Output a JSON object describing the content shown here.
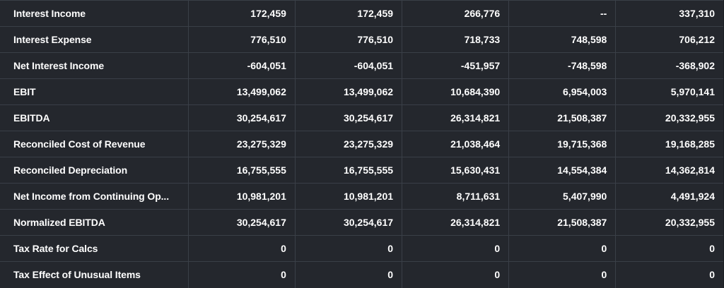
{
  "rows": [
    {
      "label": "Interest Income",
      "values": [
        "172,459",
        "172,459",
        "266,776",
        "--",
        "337,310"
      ]
    },
    {
      "label": "Interest Expense",
      "values": [
        "776,510",
        "776,510",
        "718,733",
        "748,598",
        "706,212"
      ]
    },
    {
      "label": "Net Interest Income",
      "values": [
        "-604,051",
        "-604,051",
        "-451,957",
        "-748,598",
        "-368,902"
      ]
    },
    {
      "label": "EBIT",
      "values": [
        "13,499,062",
        "13,499,062",
        "10,684,390",
        "6,954,003",
        "5,970,141"
      ]
    },
    {
      "label": "EBITDA",
      "values": [
        "30,254,617",
        "30,254,617",
        "26,314,821",
        "21,508,387",
        "20,332,955"
      ]
    },
    {
      "label": "Reconciled Cost of Revenue",
      "values": [
        "23,275,329",
        "23,275,329",
        "21,038,464",
        "19,715,368",
        "19,168,285"
      ]
    },
    {
      "label": "Reconciled Depreciation",
      "values": [
        "16,755,555",
        "16,755,555",
        "15,630,431",
        "14,554,384",
        "14,362,814"
      ]
    },
    {
      "label": "Net Income from Continuing Op...",
      "values": [
        "10,981,201",
        "10,981,201",
        "8,711,631",
        "5,407,990",
        "4,491,924"
      ]
    },
    {
      "label": "Normalized EBITDA",
      "values": [
        "30,254,617",
        "30,254,617",
        "26,314,821",
        "21,508,387",
        "20,332,955"
      ]
    },
    {
      "label": "Tax Rate for Calcs",
      "values": [
        "0",
        "0",
        "0",
        "0",
        "0"
      ]
    },
    {
      "label": "Tax Effect of Unusual Items",
      "values": [
        "0",
        "0",
        "0",
        "0",
        "0"
      ]
    }
  ]
}
